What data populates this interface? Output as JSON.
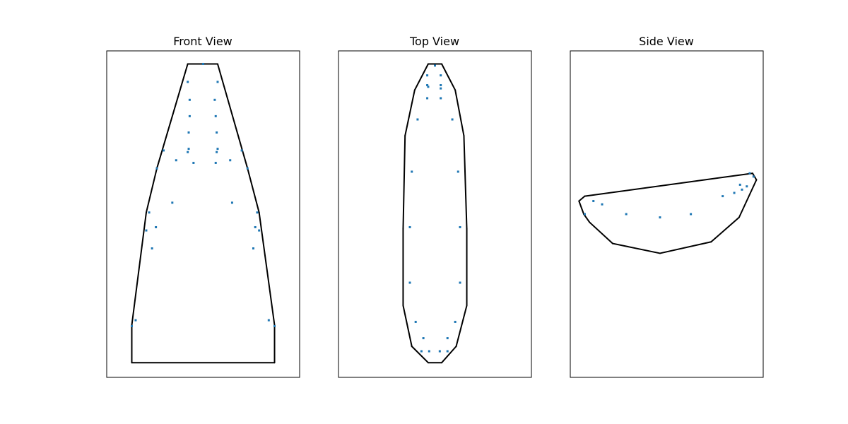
{
  "colors": {
    "points": "#1f77b4",
    "hull": "#000000",
    "frame": "#000000"
  },
  "chart_data": [
    {
      "type": "scatter",
      "title": "Front View",
      "xlabel": "",
      "ylabel": "",
      "xlim": [
        0,
        100
      ],
      "ylim": [
        0,
        100
      ],
      "ticks": false,
      "grid": false,
      "points": [
        [
          50,
          96
        ],
        [
          42,
          90.5
        ],
        [
          57.5,
          90.5
        ],
        [
          43,
          85
        ],
        [
          56,
          85
        ],
        [
          43,
          80
        ],
        [
          56.5,
          80
        ],
        [
          42.5,
          75
        ],
        [
          57,
          75
        ],
        [
          42.5,
          70
        ],
        [
          57.5,
          70
        ],
        [
          29.5,
          69.5
        ],
        [
          70,
          69.5
        ],
        [
          42,
          69
        ],
        [
          57,
          69
        ],
        [
          36,
          66.5
        ],
        [
          45,
          65.7
        ],
        [
          64,
          66.5
        ],
        [
          56.5,
          65.7
        ],
        [
          26,
          64
        ],
        [
          73,
          64
        ],
        [
          34,
          53.5
        ],
        [
          65,
          53.5
        ],
        [
          22,
          50.5
        ],
        [
          78,
          50.5
        ],
        [
          25.5,
          46
        ],
        [
          77,
          46
        ],
        [
          20.5,
          45
        ],
        [
          79,
          45
        ],
        [
          23.5,
          39.5
        ],
        [
          76,
          39.5
        ],
        [
          15,
          17.5
        ],
        [
          84,
          17.5
        ],
        [
          13,
          15.7
        ],
        [
          87,
          15.7
        ]
      ],
      "hull": [
        [
          13,
          4.5
        ],
        [
          87,
          4.5
        ],
        [
          87,
          16
        ],
        [
          79,
          50.5
        ],
        [
          73,
          64
        ],
        [
          57.5,
          96
        ],
        [
          42,
          96
        ],
        [
          26,
          64
        ],
        [
          20.5,
          50.5
        ],
        [
          13,
          16
        ]
      ]
    },
    {
      "type": "scatter",
      "title": "Top View",
      "xlabel": "",
      "ylabel": "",
      "xlim": [
        0,
        100
      ],
      "ylim": [
        0,
        100
      ],
      "ticks": false,
      "grid": false,
      "points": [
        [
          50,
          95.5
        ],
        [
          46,
          92.5
        ],
        [
          53,
          92.5
        ],
        [
          46,
          89.5
        ],
        [
          53,
          89.5
        ],
        [
          46.5,
          89
        ],
        [
          53,
          88.5
        ],
        [
          46,
          85.5
        ],
        [
          53,
          85.5
        ],
        [
          41,
          79
        ],
        [
          59,
          79
        ],
        [
          38,
          63
        ],
        [
          62,
          63
        ],
        [
          37,
          46
        ],
        [
          63,
          46
        ],
        [
          37,
          29
        ],
        [
          63,
          29
        ],
        [
          40,
          17
        ],
        [
          60.5,
          17
        ],
        [
          44,
          12
        ],
        [
          56.5,
          12
        ],
        [
          43,
          8
        ],
        [
          47,
          8
        ],
        [
          52.5,
          8
        ],
        [
          56.5,
          8
        ]
      ],
      "hull": [
        [
          46.5,
          4.5
        ],
        [
          53.5,
          4.5
        ],
        [
          61,
          9.5
        ],
        [
          66.5,
          22
        ],
        [
          66.5,
          45.5
        ],
        [
          65,
          74
        ],
        [
          60.5,
          88
        ],
        [
          53.5,
          96
        ],
        [
          46.5,
          96
        ],
        [
          39.5,
          88
        ],
        [
          34.5,
          74
        ],
        [
          33.5,
          45.5
        ],
        [
          33.5,
          22
        ],
        [
          38,
          9.5
        ]
      ]
    },
    {
      "type": "scatter",
      "title": "Side View",
      "xlabel": "",
      "ylabel": "",
      "xlim": [
        0,
        100
      ],
      "ylim": [
        0,
        100
      ],
      "ticks": false,
      "grid": false,
      "points": [
        [
          12,
          54
        ],
        [
          16.5,
          53
        ],
        [
          7.5,
          50
        ],
        [
          29,
          50
        ],
        [
          46.5,
          49
        ],
        [
          62.5,
          50
        ],
        [
          79,
          55.5
        ],
        [
          85,
          56.5
        ],
        [
          89,
          57.5
        ],
        [
          88,
          59
        ],
        [
          91.5,
          58.5
        ],
        [
          95,
          61.5
        ],
        [
          93,
          62.5
        ]
      ],
      "hull": [
        [
          4.5,
          54
        ],
        [
          7,
          50
        ],
        [
          10,
          47.5
        ],
        [
          22,
          41
        ],
        [
          46.5,
          38
        ],
        [
          73,
          41.5
        ],
        [
          87.5,
          49
        ],
        [
          96.5,
          60.5
        ],
        [
          94.5,
          62.5
        ],
        [
          7.5,
          55.5
        ]
      ]
    }
  ]
}
